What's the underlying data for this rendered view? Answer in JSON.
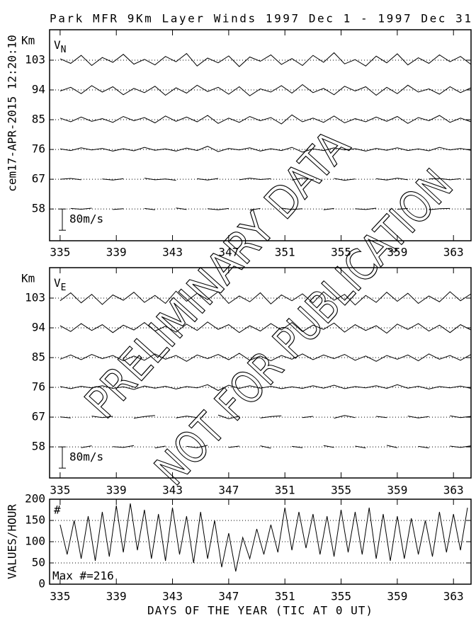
{
  "stamp": "cem17-APR-2015 12:20:10",
  "watermark": [
    "PRELIMINARY DATA",
    "NOT FOR PUBLICATION"
  ],
  "chart_data": [
    {
      "type": "line",
      "title": "Park MFR 9Km Layer Winds 1997 Dec  1 - 1997 Dec 31",
      "ylabel": "Km",
      "label": "V",
      "label_sub": "N",
      "color": "#000000",
      "scale_bar": {
        "value": 80,
        "label": "80m/s"
      },
      "xlim": [
        334.25,
        364.25
      ],
      "xticks": [
        335,
        339,
        343,
        347,
        351,
        355,
        359,
        363
      ],
      "ylim": [
        48.4,
        112.2
      ],
      "yticks": [
        103,
        94,
        85,
        76,
        67,
        58
      ],
      "grid": true,
      "x": [
        335,
        335.75,
        336.5,
        337.25,
        338,
        338.75,
        339.5,
        340.25,
        341,
        341.75,
        342.5,
        343.25,
        344,
        344.75,
        345.5,
        346.25,
        347,
        347.75,
        348.5,
        349.25,
        350,
        350.75,
        351.5,
        352.25,
        353,
        353.75,
        354.5,
        355.25,
        356,
        356.75,
        357.5,
        358.25,
        359,
        359.75,
        360.5,
        361.25,
        362,
        362.75,
        363.5,
        364.25
      ],
      "series": [
        {
          "values": [
            5,
            -12,
            18,
            -20,
            10,
            -8,
            22,
            -15,
            3,
            -18,
            14,
            -6,
            25,
            -22,
            8,
            -10,
            16,
            -24,
            12,
            -4,
            20,
            -16,
            6,
            -20,
            18,
            -8,
            28,
            -14,
            2,
            -22,
            15,
            -10,
            24,
            -18,
            9,
            -12,
            20,
            -6,
            14,
            -16
          ]
        },
        {
          "values": [
            -4,
            10,
            -14,
            16,
            -8,
            12,
            -18,
            6,
            -10,
            14,
            -20,
            8,
            -12,
            18,
            -6,
            10,
            -16,
            12,
            -22,
            4,
            -8,
            16,
            -12,
            20,
            -10,
            6,
            -18,
            14,
            -4,
            12,
            -20,
            10,
            -14,
            18,
            -8,
            4,
            -16,
            12,
            -10,
            8
          ]
        },
        {
          "values": [
            6,
            -8,
            10,
            -6,
            4,
            -10,
            12,
            -4,
            8,
            -12,
            14,
            -6,
            10,
            -8,
            16,
            -14,
            6,
            -10,
            12,
            -4,
            8,
            -16,
            18,
            -8,
            6,
            -10,
            14,
            -12,
            4,
            -8,
            10,
            -6,
            12,
            -14,
            8,
            -4,
            16,
            -10,
            6,
            -8
          ]
        },
        {
          "values": [
            2,
            -4,
            6,
            -2,
            4,
            -6,
            3,
            -5,
            8,
            -3,
            2,
            -6,
            5,
            -4,
            12,
            -8,
            4,
            -2,
            6,
            -6,
            3,
            -4,
            8,
            -10,
            2,
            -4,
            6,
            -2,
            3,
            -6,
            4,
            -3,
            6,
            -4,
            2,
            -5,
            8,
            -2,
            4,
            -3
          ]
        },
        {
          "values": [
            0,
            3,
            -2,
            null,
            1,
            -3,
            2,
            null,
            4,
            -2,
            1,
            -4,
            null,
            2,
            -3,
            3,
            null,
            -2,
            4,
            -1,
            2,
            null,
            -3,
            5,
            -2,
            null,
            3,
            -4,
            1,
            null,
            2,
            -3,
            4,
            -2,
            null,
            1,
            3,
            -2,
            2,
            null
          ]
        },
        {
          "values": [
            null,
            2,
            -1,
            3,
            null,
            -2,
            1,
            null,
            2,
            -3,
            null,
            4,
            -2,
            null,
            1,
            -3,
            2,
            null,
            -4,
            2,
            null,
            3,
            -2,
            1,
            null,
            -3,
            2,
            null,
            1,
            -2,
            3,
            null,
            -1,
            2,
            null,
            -3,
            1,
            2,
            null,
            -2
          ]
        }
      ]
    },
    {
      "type": "line",
      "ylabel": "Km",
      "label": "V",
      "label_sub": "E",
      "color": "#000000",
      "scale_bar": {
        "value": 80,
        "label": "80m/s"
      },
      "xlim": [
        334.25,
        364.25
      ],
      "xticks": [
        335,
        339,
        343,
        347,
        351,
        355,
        359,
        363
      ],
      "ylim": [
        48.6,
        112.2
      ],
      "yticks": [
        103,
        94,
        85,
        76,
        67,
        58
      ],
      "grid": true,
      "x": [
        335,
        335.75,
        336.5,
        337.25,
        338,
        338.75,
        339.5,
        340.25,
        341,
        341.75,
        342.5,
        343.25,
        344,
        344.75,
        345.5,
        346.25,
        347,
        347.75,
        348.5,
        349.25,
        350,
        350.75,
        351.5,
        352.25,
        353,
        353.75,
        354.5,
        355.25,
        356,
        356.75,
        357.5,
        358.25,
        359,
        359.75,
        360.5,
        361.25,
        362,
        362.75,
        363.5,
        364.25
      ],
      "series": [
        {
          "values": [
            -10,
            20,
            -18,
            14,
            -24,
            12,
            -8,
            22,
            -16,
            10,
            -20,
            26,
            -12,
            18,
            -6,
            24,
            -20,
            8,
            -14,
            20,
            -22,
            12,
            -10,
            16,
            -18,
            24,
            -8,
            14,
            -26,
            10,
            -16,
            22,
            -12,
            18,
            -20,
            8,
            -14,
            24,
            -10,
            16
          ]
        },
        {
          "values": [
            8,
            -14,
            16,
            -10,
            12,
            -18,
            10,
            -8,
            20,
            -12,
            6,
            -16,
            14,
            -10,
            22,
            -6,
            12,
            -18,
            8,
            -12,
            16,
            -8,
            20,
            -14,
            10,
            -6,
            18,
            -16,
            12,
            -10,
            8,
            -20,
            14,
            -6,
            16,
            -12,
            10,
            -18,
            12,
            -8
          ]
        },
        {
          "values": [
            -6,
            10,
            -8,
            12,
            -4,
            8,
            -12,
            6,
            -10,
            14,
            -6,
            8,
            -14,
            10,
            -4,
            12,
            -8,
            16,
            -10,
            6,
            -12,
            8,
            -6,
            14,
            -8,
            10,
            -4,
            12,
            -10,
            6,
            -14,
            8,
            -6,
            10,
            -12,
            14,
            -6,
            8,
            -10,
            12
          ]
        },
        {
          "values": [
            3,
            -5,
            4,
            -2,
            6,
            -4,
            2,
            -8,
            5,
            -3,
            4,
            -6,
            3,
            -2,
            10,
            -12,
            8,
            -4,
            6,
            -3,
            4,
            -5,
            2,
            -4,
            6,
            -3,
            8,
            -5,
            3,
            -2,
            6,
            -4,
            10,
            -3,
            4,
            -6,
            3,
            -2,
            5,
            -4
          ]
        },
        {
          "values": [
            1,
            -3,
            null,
            4,
            -2,
            3,
            null,
            -4,
            2,
            6,
            null,
            -3,
            4,
            -2,
            null,
            8,
            -6,
            4,
            null,
            -3,
            2,
            5,
            null,
            -2,
            3,
            null,
            -4,
            6,
            -2,
            null,
            3,
            -2,
            null,
            4,
            -3,
            2,
            null,
            5,
            -2,
            3
          ]
        },
        {
          "values": [
            2,
            null,
            -3,
            4,
            null,
            1,
            -2,
            5,
            null,
            -4,
            3,
            null,
            2,
            -3,
            6,
            null,
            -2,
            3,
            null,
            4,
            -5,
            null,
            2,
            -3,
            null,
            5,
            -2,
            null,
            3,
            -4,
            null,
            6,
            -3,
            null,
            2,
            -4,
            null,
            3,
            -2,
            4
          ]
        }
      ]
    },
    {
      "type": "line",
      "ylabel": "VALUES/HOUR",
      "count_label": "#",
      "annotation": "Max #=216",
      "xlabel": "DAYS OF THE YEAR (TIC AT 0 UT)",
      "color": "#000000",
      "xlim": [
        334.25,
        364.25
      ],
      "xticks": [
        335,
        339,
        343,
        347,
        351,
        355,
        359,
        363
      ],
      "ylim": [
        0,
        200
      ],
      "yticks": [
        200,
        150,
        100,
        50,
        0
      ],
      "grid": true,
      "x": [
        335,
        335.5,
        336,
        336.5,
        337,
        337.5,
        338,
        338.5,
        339,
        339.5,
        340,
        340.5,
        341,
        341.5,
        342,
        342.5,
        343,
        343.5,
        344,
        344.5,
        345,
        345.5,
        346,
        346.5,
        347,
        347.5,
        348,
        348.5,
        349,
        349.5,
        350,
        350.5,
        351,
        351.5,
        352,
        352.5,
        353,
        353.5,
        354,
        354.5,
        355,
        355.5,
        356,
        356.5,
        357,
        357.5,
        358,
        358.5,
        359,
        359.5,
        360,
        360.5,
        361,
        361.5,
        362,
        362.5,
        363,
        363.5,
        364
      ],
      "series": [
        {
          "values": [
            140,
            70,
            150,
            60,
            160,
            55,
            170,
            65,
            185,
            75,
            190,
            80,
            175,
            60,
            165,
            55,
            180,
            70,
            160,
            50,
            170,
            60,
            150,
            40,
            120,
            30,
            110,
            60,
            130,
            70,
            140,
            75,
            180,
            80,
            170,
            85,
            165,
            70,
            160,
            65,
            175,
            75,
            170,
            70,
            180,
            60,
            165,
            55,
            160,
            60,
            155,
            70,
            150,
            65,
            170,
            75,
            165,
            80,
            180
          ]
        }
      ]
    }
  ]
}
